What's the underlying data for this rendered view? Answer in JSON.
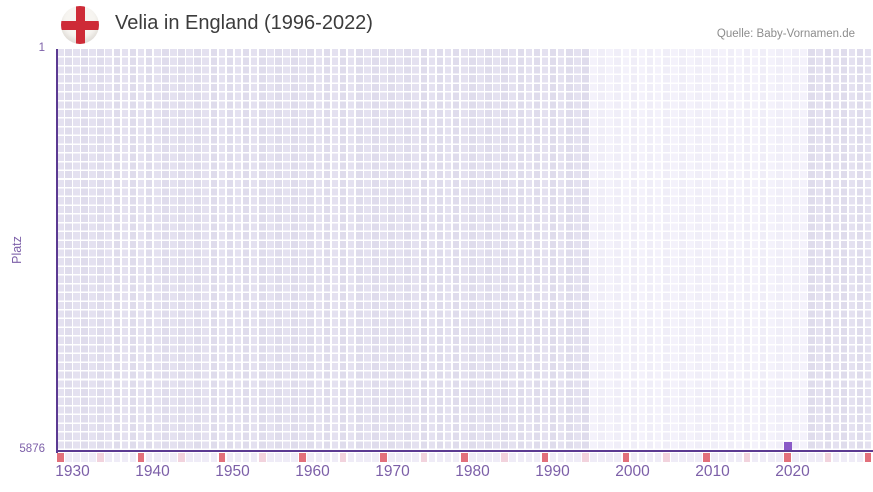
{
  "header": {
    "title": "Velia in England (1996-2022)",
    "source": "Quelle: Baby-Vornamen.de",
    "flag_icon": "england-flag-icon"
  },
  "chart_data": {
    "type": "scatter",
    "title": "Velia in England (1996-2022)",
    "xlabel": "",
    "ylabel": "Platz",
    "y_axis": {
      "top_label": "1",
      "bottom_label": "5876",
      "min": 1,
      "max": 5876,
      "inverted": true
    },
    "x_axis": {
      "start_year": 1930,
      "end_year": 2030,
      "tick_labels": [
        "1930",
        "1940",
        "1950",
        "1960",
        "1970",
        "1980",
        "1990",
        "2000",
        "2010",
        "2020"
      ],
      "minor_tick_every": 5,
      "major_tick_every": 10
    },
    "highlight_period": {
      "start": 1996,
      "end": 2022
    },
    "points": [
      {
        "year": 2020,
        "rank": 5876
      }
    ],
    "grid": true,
    "legend": "none",
    "colors": {
      "axis": "#5b3a92",
      "grid_cell": "#e4e1f0",
      "grid_cell_alt": "#dfdcec",
      "grid_highlight": "#f4f2fb",
      "grid_highlight_alt": "#f0eef8",
      "tick_base": "#efecf7",
      "tick_half_decade": "#f2d3dd",
      "tick_decade": "#e2707b",
      "point": "#8a5bc7",
      "label": "#7c5fa8",
      "flag_cross": "#ce2b37",
      "title_text": "#3c3c3c",
      "source_text": "#8d8d8d"
    }
  }
}
